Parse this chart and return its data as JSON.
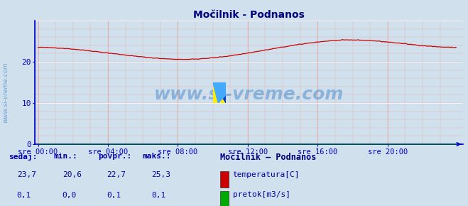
{
  "title": "Močilnik - Podnanos",
  "bg_color": "#d0e0ec",
  "plot_bg_color": "#d0e0ec",
  "grid_color_v": "#e0b0b0",
  "grid_color_h": "#e0b0b0",
  "grid_white_h": "#ffffff",
  "line_color_temp": "#cc0000",
  "line_color_flow": "#008800",
  "axis_color": "#0000cc",
  "text_color": "#0000aa",
  "title_color": "#000080",
  "ylim": [
    0,
    30
  ],
  "yticks": [
    0,
    10,
    20
  ],
  "xtick_labels": [
    "sre 00:00",
    "sre 04:00",
    "sre 08:00",
    "sre 12:00",
    "sre 16:00",
    "sre 20:00"
  ],
  "total_points": 288,
  "watermark": "www.si-vreme.com",
  "legend_title": "Močilnik – Podnanos",
  "legend_items": [
    {
      "label": "temperatura[C]",
      "color": "#cc0000"
    },
    {
      "label": "pretok[m3/s]",
      "color": "#00aa00"
    }
  ],
  "stats_headers": [
    "sedaj:",
    "min.:",
    "povpr.:",
    "maks.:"
  ],
  "stats_temp": [
    "23,7",
    "20,6",
    "22,7",
    "25,3"
  ],
  "stats_flow": [
    "0,1",
    "0,0",
    "0,1",
    "0,1"
  ]
}
